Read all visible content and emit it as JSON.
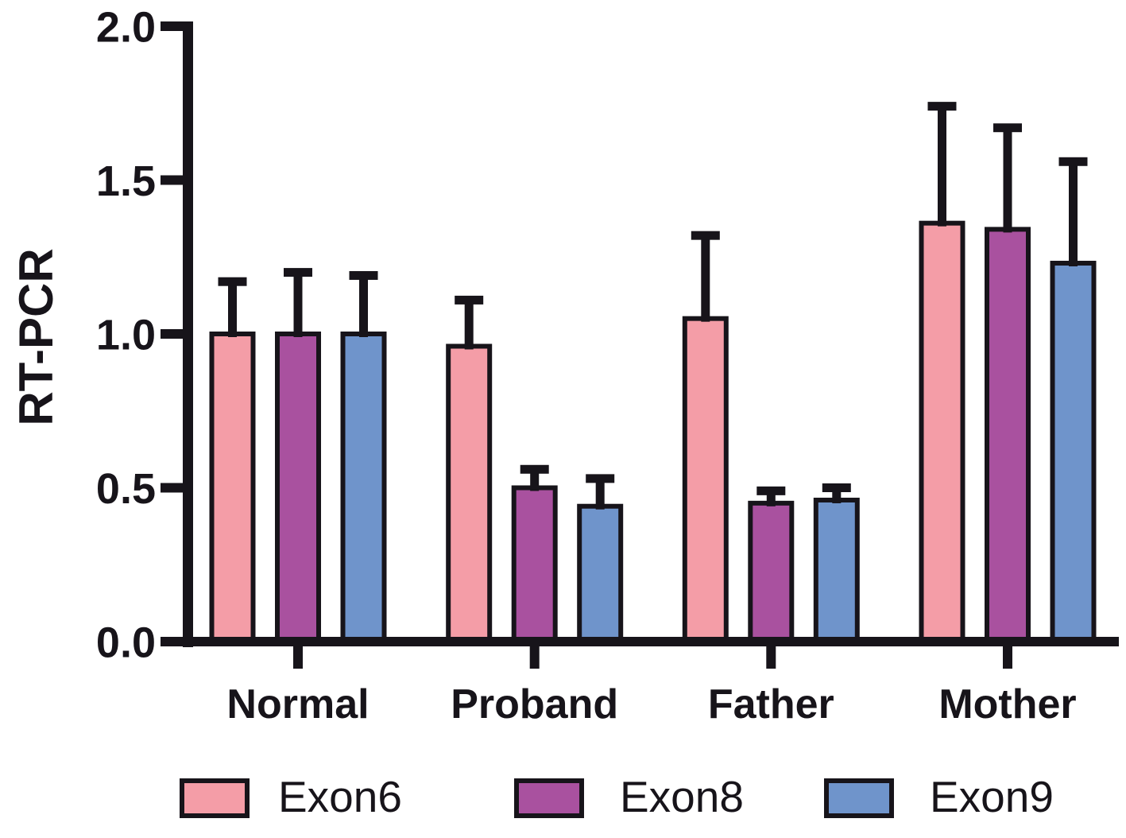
{
  "chart_data": {
    "type": "bar",
    "title": "",
    "xlabel": "",
    "ylabel": "RT-PCR",
    "categories": [
      "Normal",
      "Proband",
      "Father",
      "Mother"
    ],
    "series": [
      {
        "name": "Exon6",
        "color": "#F49DA7",
        "values": [
          1.0,
          0.96,
          1.05,
          1.36
        ],
        "sd": [
          0.17,
          0.15,
          0.27,
          0.38
        ]
      },
      {
        "name": "Exon8",
        "color": "#A9519F",
        "values": [
          1.0,
          0.5,
          0.45,
          1.34
        ],
        "sd": [
          0.2,
          0.06,
          0.04,
          0.33
        ]
      },
      {
        "name": "Exon9",
        "color": "#6F94CB",
        "values": [
          1.0,
          0.44,
          0.46,
          1.23
        ],
        "sd": [
          0.19,
          0.09,
          0.04,
          0.33
        ]
      }
    ],
    "error_bars": "upper only",
    "y_axis": {
      "min": 0,
      "max": 2,
      "ticks": [
        0.0,
        0.5,
        1.0,
        1.5,
        2.0
      ],
      "tick_labels": [
        "0.0",
        "0.5",
        "1.0",
        "1.5",
        "2.0"
      ]
    },
    "grid": false,
    "legend_position": "bottom",
    "axis_color": "#17141a",
    "background_color": "#ffffff"
  }
}
